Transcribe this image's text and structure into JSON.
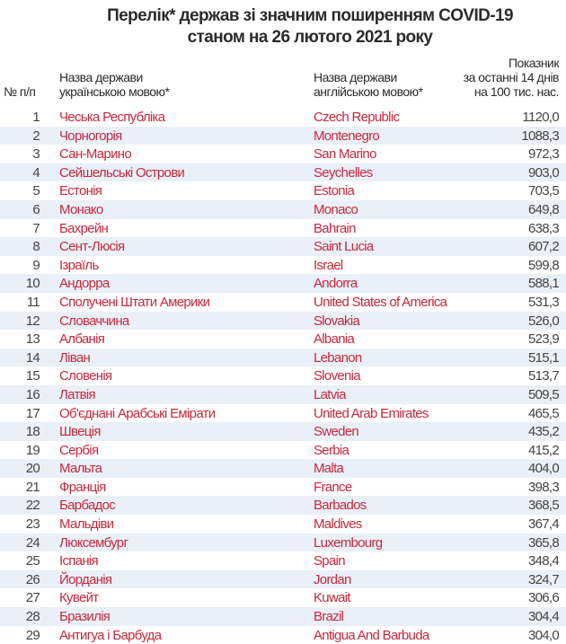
{
  "title": {
    "line1": "Перелік* держав зі значним поширенням COVID-19",
    "line2": "станом на 26 лютого 2021 року"
  },
  "headers": {
    "num": "№ п/п",
    "uk_line1": "Назва держави",
    "uk_line2": "українською мовою*",
    "en_line1": "Назва держави",
    "en_line2": "англійською мовою*",
    "val_line1": "Показник",
    "val_line2": "за останні 14 днів",
    "val_line3": "на 100 тис. нас."
  },
  "colors": {
    "country": "#c8283c",
    "stripe": "#e9f0f8"
  },
  "rows": [
    {
      "n": "1",
      "uk": "Чеська Республіка",
      "en": "Czech Republic",
      "v": "1120,0"
    },
    {
      "n": "2",
      "uk": "Чорногорія",
      "en": "Montenegro",
      "v": "1088,3"
    },
    {
      "n": "3",
      "uk": "Сан-Марино",
      "en": "San Marino",
      "v": "972,3"
    },
    {
      "n": "4",
      "uk": "Сейшельські Острови",
      "en": "Seychelles",
      "v": "903,0"
    },
    {
      "n": "5",
      "uk": "Естонія",
      "en": "Estonia",
      "v": "703,5"
    },
    {
      "n": "6",
      "uk": "Монако",
      "en": "Monaco",
      "v": "649,8"
    },
    {
      "n": "7",
      "uk": "Бахрейн",
      "en": "Bahrain",
      "v": "638,3"
    },
    {
      "n": "8",
      "uk": "Сент-Люсія",
      "en": "Saint Lucia",
      "v": "607,2"
    },
    {
      "n": "9",
      "uk": "Ізраїль",
      "en": "Israel",
      "v": "599,8"
    },
    {
      "n": "10",
      "uk": "Андорра",
      "en": "Andorra",
      "v": "588,1"
    },
    {
      "n": "11",
      "uk": "Сполучені Штати Америки",
      "en": "United States of America",
      "v": "531,3"
    },
    {
      "n": "12",
      "uk": "Словаччина",
      "en": "Slovakia",
      "v": "526,0"
    },
    {
      "n": "13",
      "uk": "Албанія",
      "en": "Albania",
      "v": "523,9"
    },
    {
      "n": "14",
      "uk": "Ліван",
      "en": "Lebanon",
      "v": "515,1"
    },
    {
      "n": "15",
      "uk": "Словенія",
      "en": "Slovenia",
      "v": "513,7"
    },
    {
      "n": "16",
      "uk": "Латвія",
      "en": "Latvia",
      "v": "509,5"
    },
    {
      "n": "17",
      "uk": "Об'єднані Арабські Емірати",
      "en": "United Arab Emirates",
      "v": "465,5"
    },
    {
      "n": "18",
      "uk": "Швеція",
      "en": "Sweden",
      "v": "435,2"
    },
    {
      "n": "19",
      "uk": "Сербія",
      "en": "Serbia",
      "v": "415,2"
    },
    {
      "n": "20",
      "uk": "Мальта",
      "en": "Malta",
      "v": "404,0"
    },
    {
      "n": "21",
      "uk": "Франція",
      "en": "France",
      "v": "398,3"
    },
    {
      "n": "22",
      "uk": "Барбадос",
      "en": "Barbados",
      "v": "368,5"
    },
    {
      "n": "23",
      "uk": "Мальдіви",
      "en": "Maldives",
      "v": "367,4"
    },
    {
      "n": "24",
      "uk": "Люксембург",
      "en": "Luxembourg",
      "v": "365,8"
    },
    {
      "n": "25",
      "uk": "Іспанія",
      "en": "Spain",
      "v": "348,4"
    },
    {
      "n": "26",
      "uk": "Йорданія",
      "en": "Jordan",
      "v": "324,7"
    },
    {
      "n": "27",
      "uk": "Кувейт",
      "en": "Kuwait",
      "v": "306,6"
    },
    {
      "n": "28",
      "uk": "Бразилія",
      "en": "Brazil",
      "v": "304,4"
    },
    {
      "n": "29",
      "uk": "Антигуа і Барбуда",
      "en": "Antigua And Barbuda",
      "v": "304,0"
    }
  ]
}
